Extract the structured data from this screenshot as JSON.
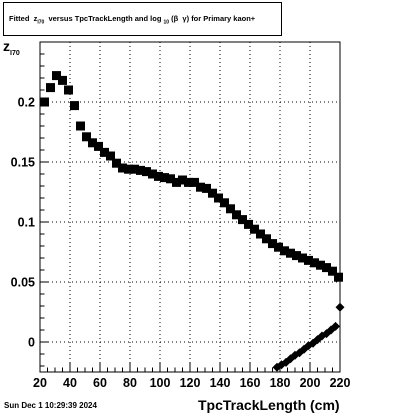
{
  "chart_data": {
    "type": "scatter",
    "title": {
      "prefix": "Fitted",
      "z": "z",
      "z_sub": "I70",
      "mid": "versus TpcTrackLength and log",
      "log_sub": "10",
      "beta": "(β",
      "gamma": "γ)",
      "suffix": "for Primary kaon+"
    },
    "xlabel": "TpcTrackLength (cm)",
    "ylabel": "z",
    "ylabel_sub": "I70",
    "xlim": [
      20,
      220
    ],
    "ylim": [
      -0.025,
      0.25
    ],
    "xticks": [
      20,
      40,
      60,
      80,
      100,
      120,
      140,
      160,
      180,
      200,
      220
    ],
    "yticks": [
      0,
      0.05,
      0.1,
      0.15,
      0.2
    ],
    "ytick_labels": [
      "0",
      "0.05",
      "0.1",
      "0.15",
      "0.2"
    ],
    "grid": true,
    "series": [
      {
        "marker": "square",
        "color": "#000000",
        "x": [
          23,
          27,
          31,
          35,
          39,
          43,
          47,
          51,
          55,
          59,
          63,
          67,
          71,
          75,
          79,
          83,
          87,
          91,
          95,
          99,
          103,
          107,
          111,
          115,
          119,
          123,
          127,
          131,
          135,
          139,
          143,
          147,
          151,
          155,
          159,
          163,
          167,
          171,
          175,
          179,
          183,
          187,
          191,
          195,
          199,
          203,
          207,
          211,
          215,
          219
        ],
        "y": [
          0.2,
          0.212,
          0.222,
          0.218,
          0.21,
          0.197,
          0.18,
          0.171,
          0.166,
          0.163,
          0.158,
          0.155,
          0.149,
          0.145,
          0.144,
          0.144,
          0.143,
          0.142,
          0.14,
          0.138,
          0.137,
          0.136,
          0.133,
          0.135,
          0.133,
          0.133,
          0.129,
          0.128,
          0.124,
          0.12,
          0.116,
          0.111,
          0.106,
          0.102,
          0.098,
          0.094,
          0.09,
          0.086,
          0.082,
          0.079,
          0.076,
          0.074,
          0.072,
          0.07,
          0.068,
          0.066,
          0.064,
          0.062,
          0.059,
          0.054
        ]
      },
      {
        "marker": "diamond",
        "color": "#000000",
        "x": [
          178,
          181,
          184,
          187,
          190,
          193,
          196,
          199,
          202,
          205,
          208,
          211,
          214,
          217,
          220
        ],
        "y": [
          -0.021,
          -0.019,
          -0.017,
          -0.014,
          -0.011,
          -0.009,
          -0.006,
          -0.003,
          -0.001,
          0.002,
          0.005,
          0.007,
          0.01,
          0.013,
          0.029
        ]
      }
    ]
  },
  "footer": {
    "timestamp": "Sun Dec  1 10:29:39 2024"
  }
}
